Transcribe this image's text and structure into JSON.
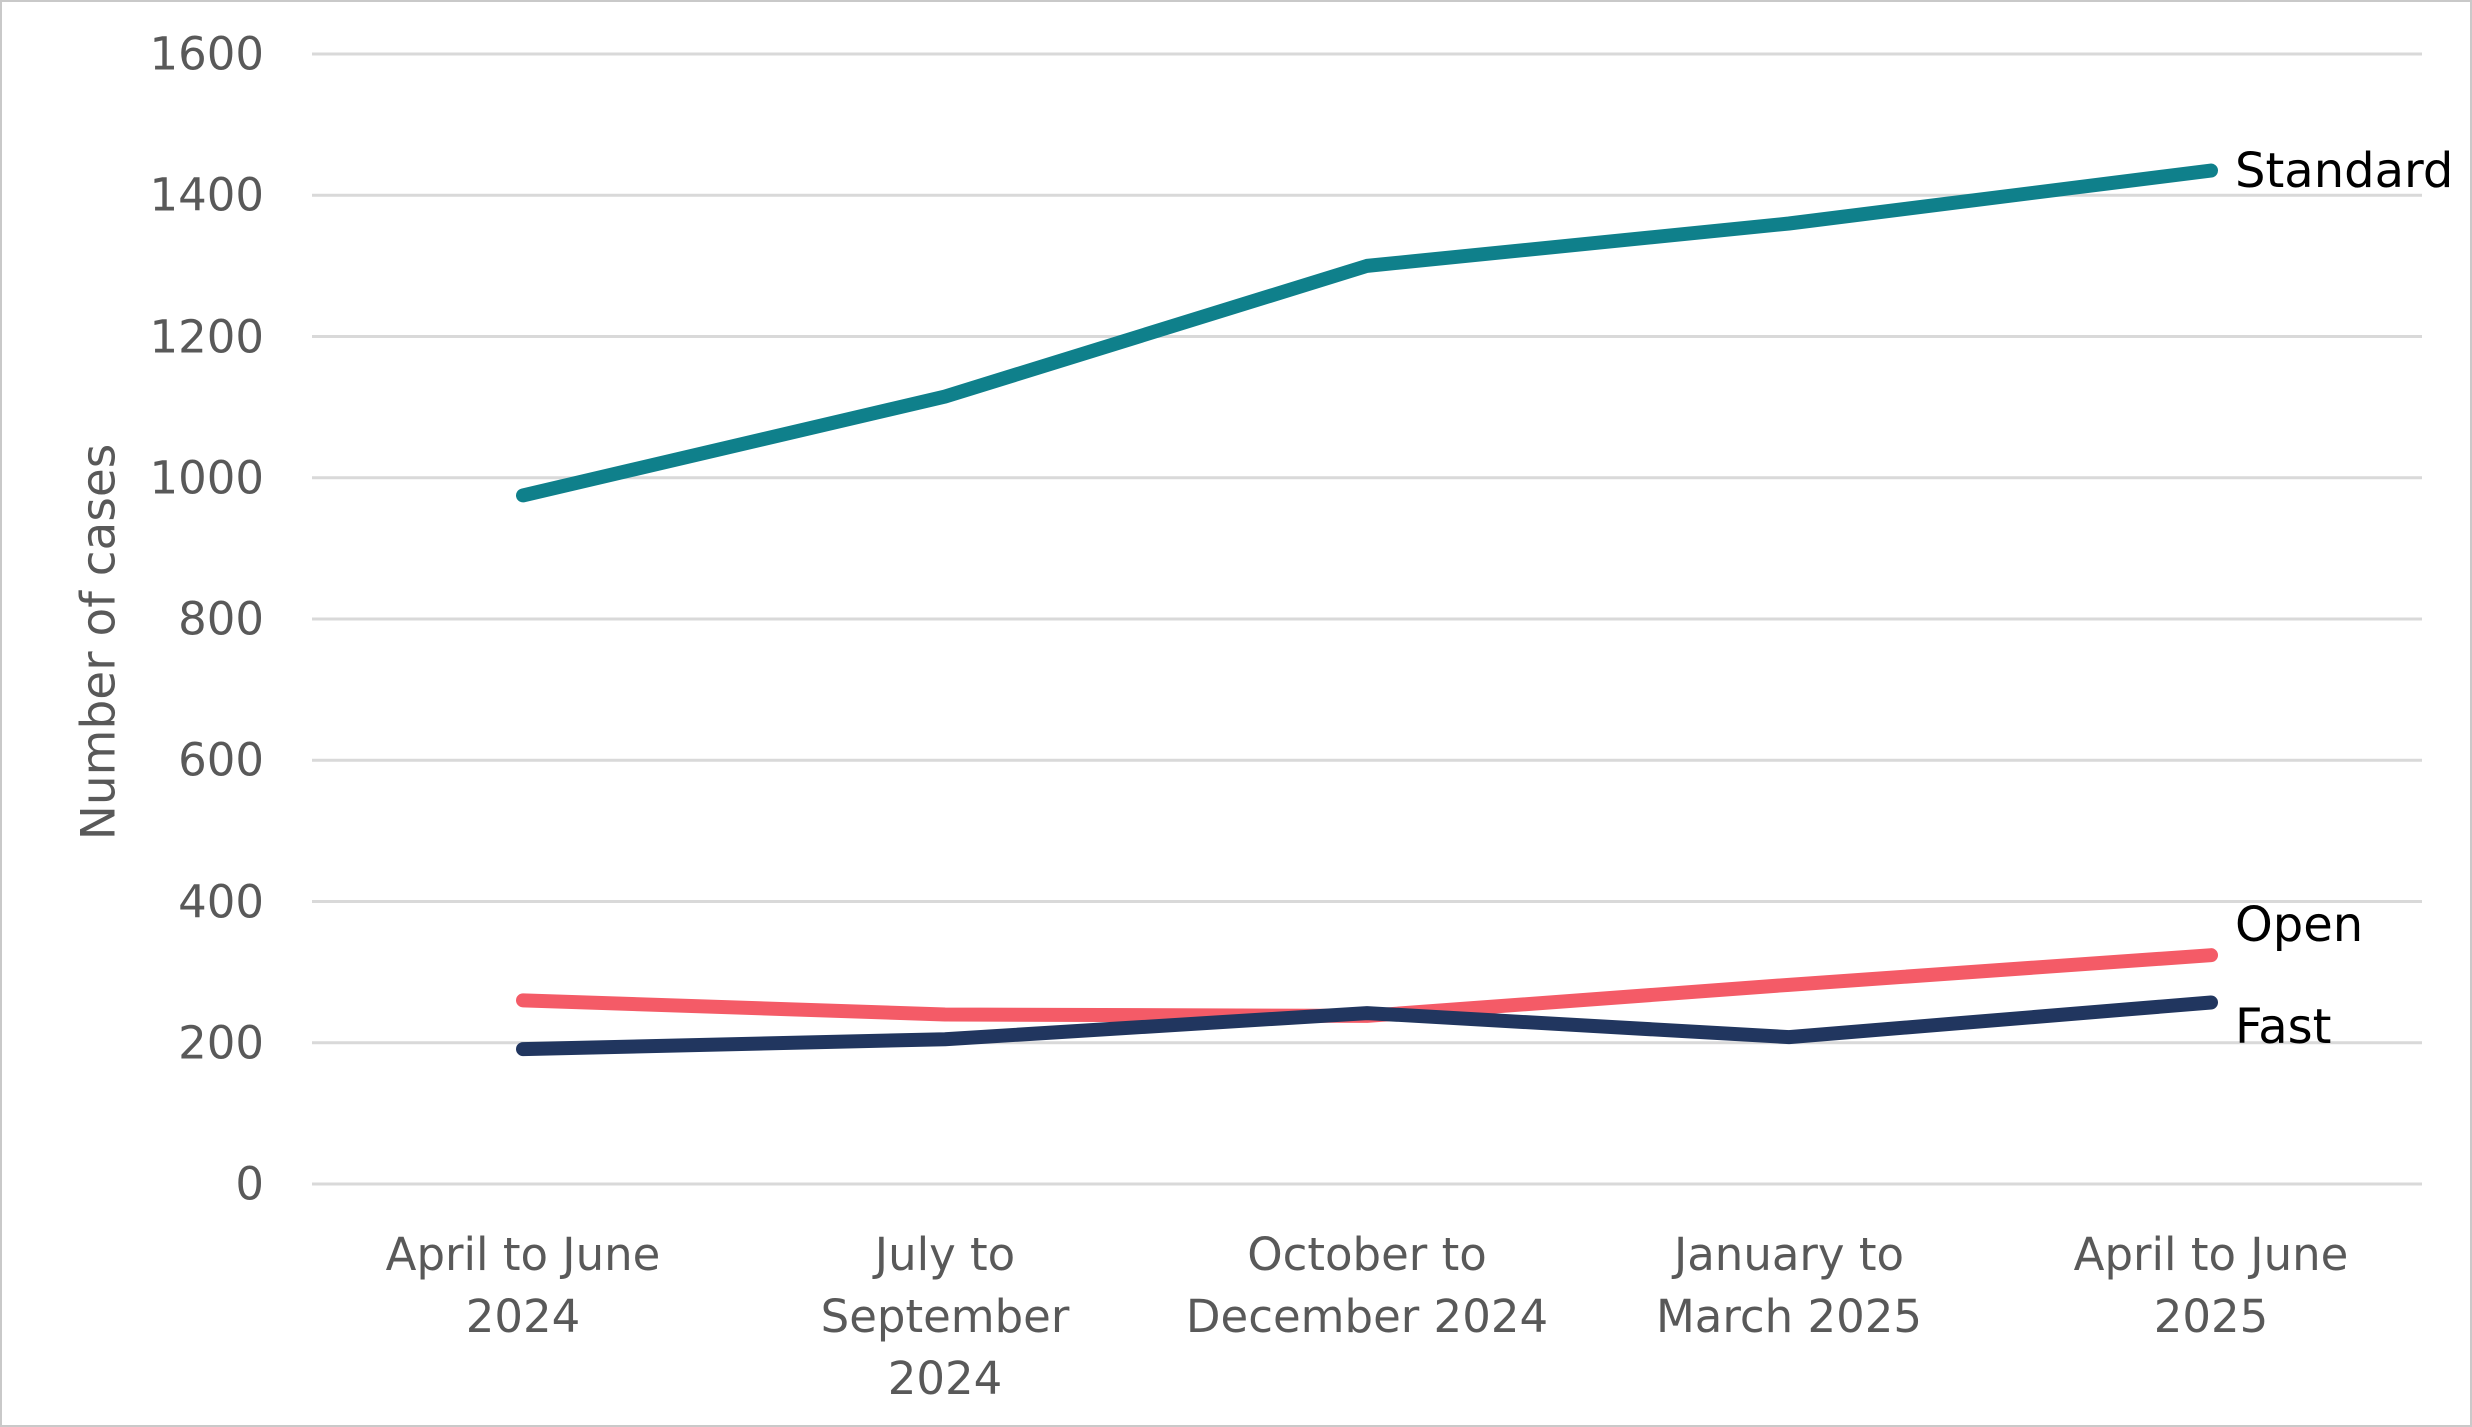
{
  "chart_data": {
    "type": "line",
    "title": "",
    "xlabel": "",
    "ylabel": "Number of cases",
    "ylim": [
      0,
      1600
    ],
    "y_ticks": [
      0,
      200,
      400,
      600,
      800,
      1000,
      1200,
      1400,
      1600
    ],
    "grid": true,
    "legend_position": "direct line-end labels (right side)",
    "categories": [
      "April to June 2024",
      "July to September 2024",
      "October to December 2024",
      "January to March 2025",
      "April to June 2025"
    ],
    "category_label_lines": [
      [
        "April to June",
        "2024"
      ],
      [
        "July to",
        "September",
        "2024"
      ],
      [
        "October to",
        "December 2024"
      ],
      [
        "January to",
        "March 2025"
      ],
      [
        "April to June",
        "2025"
      ]
    ],
    "series": [
      {
        "name": "Standard",
        "color": "#0F808B",
        "values": [
          975,
          1115,
          1300,
          1360,
          1435
        ]
      },
      {
        "name": "Open",
        "color": "#F45B67",
        "values": [
          260,
          240,
          238,
          282,
          324
        ]
      },
      {
        "name": "Fast",
        "color": "#21365F",
        "values": [
          191,
          205,
          242,
          208,
          257
        ]
      }
    ]
  },
  "colors": {
    "axis_text": "#595959",
    "series_label_text": "#000000",
    "gridline": "#D9D9D9",
    "background": "#FFFFFF",
    "frame_border": "#C9C9C9"
  }
}
